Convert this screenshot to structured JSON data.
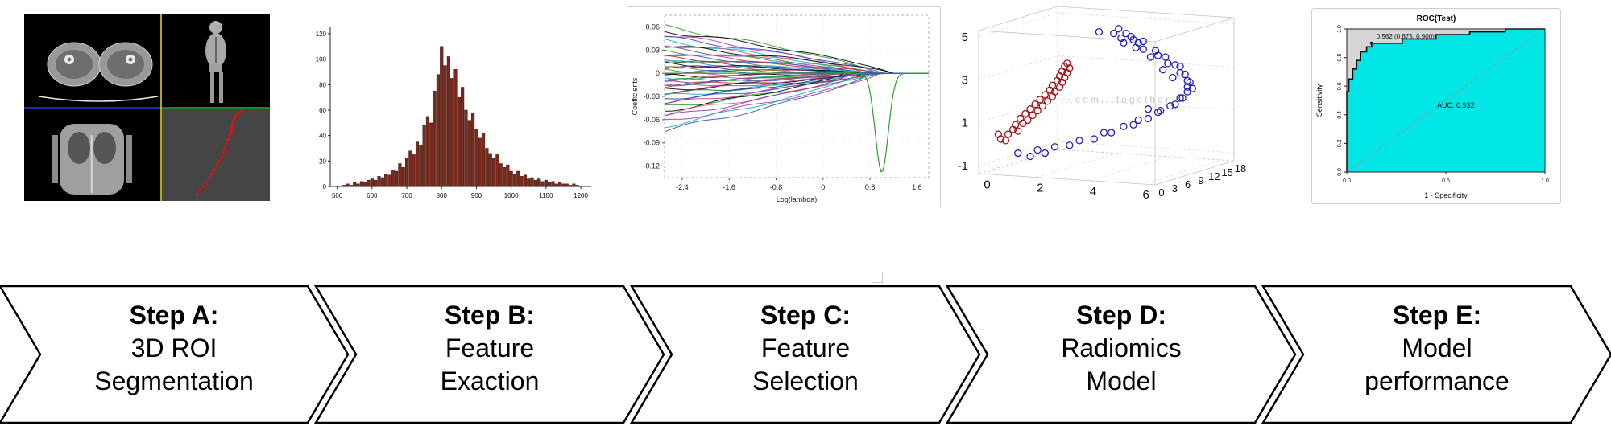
{
  "steps": [
    {
      "title": "Step A:",
      "lines": [
        "3D ROI",
        "Segmentation"
      ]
    },
    {
      "title": "Step B:",
      "lines": [
        "Feature",
        "Exaction"
      ]
    },
    {
      "title": "Step C:",
      "lines": [
        "Feature",
        "Selection"
      ]
    },
    {
      "title": "Step D:",
      "lines": [
        "Radiomics",
        "Model"
      ]
    },
    {
      "title": "Step E:",
      "lines": [
        "Model",
        "performance"
      ]
    }
  ],
  "arrow_style": {
    "fill": "#ffffff",
    "stroke": "#000000"
  },
  "medical_viewer": {
    "quadrants": [
      "axial-ct-thighs",
      "coronal-scout",
      "coronal-ct-body",
      "3d-roi-red-curve"
    ],
    "crosshair_colors": {
      "vertical": "#e8e12a",
      "horizontal_left": "#2a3bdc",
      "horizontal_right": "#27b327"
    },
    "roi_color": "#cc1515",
    "roi_points": [
      [
        215,
        224
      ],
      [
        218,
        219
      ],
      [
        222,
        214
      ],
      [
        226,
        209
      ],
      [
        230,
        204
      ],
      [
        233,
        199
      ],
      [
        236,
        193
      ],
      [
        239,
        188
      ],
      [
        242,
        183
      ],
      [
        245,
        178
      ],
      [
        247,
        172
      ],
      [
        249,
        167
      ],
      [
        251,
        161
      ],
      [
        253,
        156
      ],
      [
        255,
        150
      ],
      [
        257,
        145
      ],
      [
        258,
        140
      ],
      [
        259,
        135
      ],
      [
        261,
        130
      ],
      [
        263,
        126
      ],
      [
        266,
        123
      ],
      [
        269,
        121
      ]
    ]
  },
  "chart_data": [
    {
      "type": "bar",
      "name": "feature-histogram",
      "x_start": 520,
      "x_step": 10,
      "values": [
        1,
        2,
        1,
        3,
        2,
        4,
        3,
        5,
        6,
        5,
        8,
        7,
        10,
        9,
        13,
        12,
        18,
        15,
        22,
        28,
        25,
        35,
        32,
        48,
        55,
        50,
        75,
        88,
        110,
        95,
        102,
        85,
        92,
        70,
        78,
        60,
        52,
        58,
        45,
        38,
        42,
        30,
        26,
        22,
        25,
        18,
        15,
        17,
        12,
        10,
        12,
        8,
        9,
        6,
        7,
        5,
        6,
        4,
        5,
        3,
        4,
        2,
        3,
        2,
        2,
        1,
        2,
        1
      ],
      "xticks": [
        500,
        600,
        700,
        800,
        900,
        1000,
        1100,
        1200
      ],
      "yticks": [
        0,
        20,
        40,
        60,
        80,
        100,
        120
      ],
      "xlim": [
        480,
        1230
      ],
      "ylim": [
        0,
        125
      ],
      "bar_color": "#7a2a1c",
      "bar_edge": "#20100a"
    },
    {
      "type": "line",
      "name": "lasso-coefficient-paths",
      "xlabel": "Log(lambda)",
      "ylabel": "Coefficients",
      "xlim": [
        -2.7,
        1.8
      ],
      "ylim": [
        -0.135,
        0.075
      ],
      "xticks": [
        -2.4,
        -1.6,
        -0.8,
        0,
        0.8,
        1.6
      ],
      "yticks": [
        0.06,
        0.03,
        0,
        -0.03,
        -0.06,
        -0.09,
        -0.12
      ],
      "lines": [
        {
          "c": "#2f9e2f",
          "y0": 0.06,
          "xc": 0.9
        },
        {
          "c": "#000000",
          "y0": 0.055,
          "xc": 1.15
        },
        {
          "c": "#c32fa5",
          "y0": 0.05,
          "xc": 0.7
        },
        {
          "c": "#2f4fd0",
          "y0": 0.046,
          "xc": 1.0
        },
        {
          "c": "#12aec4",
          "y0": 0.042,
          "xc": 0.5
        },
        {
          "c": "#e05580",
          "y0": 0.038,
          "xc": 0.85
        },
        {
          "c": "#000000",
          "y0": 0.035,
          "xc": 1.2
        },
        {
          "c": "#7a3fa0",
          "y0": 0.032,
          "xc": 0.6
        },
        {
          "c": "#2f9e2f",
          "y0": 0.029,
          "xc": 0.95
        },
        {
          "c": "#c32fa5",
          "y0": 0.026,
          "xc": 0.45
        },
        {
          "c": "#2f4fd0",
          "y0": 0.023,
          "xc": 0.75
        },
        {
          "c": "#c03030",
          "y0": 0.02,
          "xc": 1.05
        },
        {
          "c": "#707070",
          "y0": 0.018,
          "xc": 0.55
        },
        {
          "c": "#1d6b1d",
          "y0": 0.016,
          "xc": 0.35
        },
        {
          "c": "#12aec4",
          "y0": 0.014,
          "xc": 0.85
        },
        {
          "c": "#000000",
          "y0": 0.012,
          "xc": 0.65
        },
        {
          "c": "#c32fa5",
          "y0": 0.01,
          "xc": 0.4
        },
        {
          "c": "#203a8a",
          "y0": 0.008,
          "xc": 0.95
        },
        {
          "c": "#8a7a1a",
          "y0": 0.006,
          "xc": 0.3
        },
        {
          "c": "#2f9e2f",
          "y0": 0.004,
          "xc": 0.7
        },
        {
          "c": "#2f4fd0",
          "y0": 0.002,
          "xc": 0.5
        },
        {
          "c": "#c32fa5",
          "y0": -0.002,
          "xc": 0.6
        },
        {
          "c": "#000000",
          "y0": -0.004,
          "xc": 0.35
        },
        {
          "c": "#12aec4",
          "y0": -0.006,
          "xc": 0.8
        },
        {
          "c": "#e05580",
          "y0": -0.008,
          "xc": 0.5
        },
        {
          "c": "#2f9e2f",
          "y0": -0.01,
          "xc": 1.1
        },
        {
          "c": "#7a3fa0",
          "y0": -0.012,
          "xc": 0.4
        },
        {
          "c": "#2f4fd0",
          "y0": -0.014,
          "xc": 0.9
        },
        {
          "c": "#c03030",
          "y0": -0.016,
          "xc": 0.6
        },
        {
          "c": "#707070",
          "y0": -0.018,
          "xc": 0.3
        },
        {
          "c": "#000000",
          "y0": -0.021,
          "xc": 0.75
        },
        {
          "c": "#c32fa5",
          "y0": -0.024,
          "xc": 0.5
        },
        {
          "c": "#1d6b1d",
          "y0": -0.027,
          "xc": 1.0
        },
        {
          "c": "#12aec4",
          "y0": -0.03,
          "xc": 0.65
        },
        {
          "c": "#203a8a",
          "y0": -0.033,
          "xc": 0.45
        },
        {
          "c": "#2f4fd0",
          "y0": -0.036,
          "xc": 0.8
        },
        {
          "c": "#c32fa5",
          "y0": -0.04,
          "xc": 0.55
        },
        {
          "c": "#2f9e2f",
          "y0": -0.044,
          "xc": 0.9
        },
        {
          "c": "#000000",
          "y0": -0.048,
          "xc": 0.35
        },
        {
          "c": "#e05580",
          "y0": -0.052,
          "xc": 0.7
        },
        {
          "c": "#7a3fa0",
          "y0": -0.057,
          "xc": 0.5
        },
        {
          "c": "#c32fa5",
          "y0": -0.062,
          "xc": 0.95
        },
        {
          "c": "#12aec4",
          "y0": -0.068,
          "xc": 0.6
        },
        {
          "c": "#2f4fd0",
          "y0": -0.074,
          "xc": 0.8
        }
      ],
      "dip": {
        "color": "#2f9e2f",
        "depth": -0.128,
        "center": 1.0,
        "width": 0.11
      }
    },
    {
      "type": "scatter",
      "name": "radiomics-3d-clusters",
      "zticks": [
        5,
        3,
        1,
        -1
      ],
      "xticks": [
        0,
        2,
        4,
        6
      ],
      "yticks": [
        0,
        3,
        6,
        9,
        12,
        15,
        18
      ],
      "watermark": "...com...together",
      "series": [
        {
          "name": "group-red",
          "color": "#a01515",
          "points": [
            [
              0.11,
              0.74
            ],
            [
              0.13,
              0.71
            ],
            [
              0.15,
              0.72
            ],
            [
              0.14,
              0.68
            ],
            [
              0.17,
              0.67
            ],
            [
              0.16,
              0.64
            ],
            [
              0.19,
              0.65
            ],
            [
              0.18,
              0.61
            ],
            [
              0.21,
              0.62
            ],
            [
              0.2,
              0.58
            ],
            [
              0.23,
              0.59
            ],
            [
              0.22,
              0.55
            ],
            [
              0.25,
              0.56
            ],
            [
              0.24,
              0.52
            ],
            [
              0.27,
              0.53
            ],
            [
              0.26,
              0.49
            ],
            [
              0.29,
              0.5
            ],
            [
              0.28,
              0.46
            ],
            [
              0.3,
              0.47
            ],
            [
              0.29,
              0.43
            ],
            [
              0.32,
              0.44
            ],
            [
              0.31,
              0.4
            ],
            [
              0.33,
              0.41
            ],
            [
              0.32,
              0.37
            ],
            [
              0.34,
              0.38
            ],
            [
              0.33,
              0.34
            ],
            [
              0.35,
              0.35
            ],
            [
              0.34,
              0.31
            ],
            [
              0.36,
              0.32
            ],
            [
              0.35,
              0.29
            ],
            [
              0.08,
              0.77
            ],
            [
              0.1,
              0.78
            ],
            [
              0.07,
              0.74
            ]
          ]
        },
        {
          "name": "group-blue",
          "color": "#2020b0",
          "points": [
            [
              0.48,
              0.09
            ],
            [
              0.54,
              0.1
            ],
            [
              0.57,
              0.13
            ],
            [
              0.62,
              0.14
            ],
            [
              0.64,
              0.16
            ],
            [
              0.66,
              0.2
            ],
            [
              0.71,
              0.21
            ],
            [
              0.72,
              0.24
            ],
            [
              0.75,
              0.25
            ],
            [
              0.76,
              0.29
            ],
            [
              0.79,
              0.3
            ],
            [
              0.81,
              0.31
            ],
            [
              0.81,
              0.35
            ],
            [
              0.83,
              0.36
            ],
            [
              0.84,
              0.4
            ],
            [
              0.85,
              0.41
            ],
            [
              0.84,
              0.44
            ],
            [
              0.86,
              0.45
            ],
            [
              0.84,
              0.47
            ],
            [
              0.82,
              0.51
            ],
            [
              0.81,
              0.51
            ],
            [
              0.79,
              0.55
            ],
            [
              0.77,
              0.56
            ],
            [
              0.73,
              0.59
            ],
            [
              0.72,
              0.6
            ],
            [
              0.68,
              0.64
            ],
            [
              0.64,
              0.65
            ],
            [
              0.62,
              0.68
            ],
            [
              0.58,
              0.69
            ],
            [
              0.53,
              0.73
            ],
            [
              0.5,
              0.73
            ],
            [
              0.46,
              0.77
            ],
            [
              0.4,
              0.78
            ],
            [
              0.36,
              0.81
            ],
            [
              0.3,
              0.82
            ],
            [
              0.26,
              0.86
            ],
            [
              0.56,
              0.07
            ],
            [
              0.59,
              0.1
            ],
            [
              0.61,
              0.12
            ],
            [
              0.58,
              0.16
            ],
            [
              0.63,
              0.19
            ],
            [
              0.66,
              0.15
            ],
            [
              0.69,
              0.25
            ],
            [
              0.74,
              0.33
            ],
            [
              0.78,
              0.38
            ],
            [
              0.68,
              0.58
            ],
            [
              0.2,
              0.88
            ],
            [
              0.15,
              0.86
            ],
            [
              0.23,
              0.84
            ]
          ]
        }
      ]
    },
    {
      "type": "line",
      "name": "roc-test",
      "title": "ROC(Test)",
      "xlabel": "1 - Specificity",
      "ylabel": "Sensitivity",
      "xticks": [
        0.0,
        0.5,
        1.0
      ],
      "yticks": [
        0.0,
        0.2,
        0.4,
        0.6,
        0.8,
        1.0
      ],
      "threshold_label": "0.562 (0.875, 0.900)",
      "threshold_point": [
        0.125,
        0.9
      ],
      "auc_label": "AUC: 0.932",
      "curve": [
        [
          0,
          0
        ],
        [
          0,
          0.562
        ],
        [
          0.01,
          0.562
        ],
        [
          0.01,
          0.65
        ],
        [
          0.03,
          0.65
        ],
        [
          0.03,
          0.72
        ],
        [
          0.05,
          0.72
        ],
        [
          0.05,
          0.78
        ],
        [
          0.07,
          0.78
        ],
        [
          0.07,
          0.84
        ],
        [
          0.1,
          0.84
        ],
        [
          0.1,
          0.875
        ],
        [
          0.125,
          0.875
        ],
        [
          0.125,
          0.9
        ],
        [
          0.28,
          0.9
        ],
        [
          0.28,
          0.93
        ],
        [
          0.45,
          0.93
        ],
        [
          0.45,
          0.96
        ],
        [
          0.62,
          0.96
        ],
        [
          0.62,
          0.98
        ],
        [
          0.8,
          0.98
        ],
        [
          0.8,
          1.0
        ],
        [
          1.0,
          1.0
        ]
      ],
      "fill_below": "#00e5e5",
      "fill_above": "#d6d6d6",
      "diagonal": true
    }
  ]
}
